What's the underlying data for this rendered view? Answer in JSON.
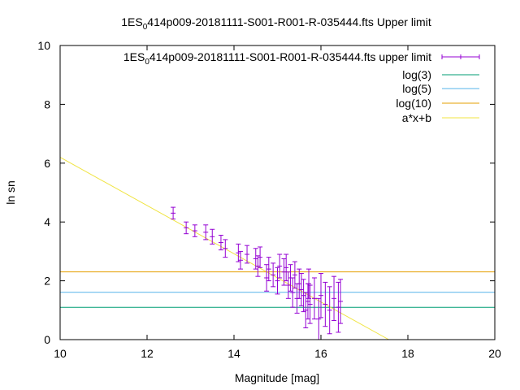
{
  "chart_data": {
    "type": "scatter",
    "title": {
      "prefix": "1ES",
      "sub": "0",
      "rest": "414p009-20181111-S001-R001-R-035444.fts Upper limit"
    },
    "xlabel": "Magnitude [mag]",
    "ylabel": "ln sn",
    "xlim": [
      10,
      20
    ],
    "ylim": [
      0,
      10
    ],
    "xticks": [
      "10",
      "12",
      "14",
      "16",
      "18",
      "20"
    ],
    "yticks": [
      "0",
      "2",
      "4",
      "6",
      "8",
      "10"
    ],
    "grid": false,
    "legend_position": "top-right",
    "series": [
      {
        "name_prefix": "1ES",
        "name_sub": "0",
        "name_rest": "414p009-20181111-S001-R001-R-035444.fts upper limit",
        "kind": "errorbars",
        "color": "#9400d3",
        "points": [
          {
            "x": 12.6,
            "y": 4.3,
            "err": 0.2
          },
          {
            "x": 12.9,
            "y": 3.8,
            "err": 0.2
          },
          {
            "x": 13.1,
            "y": 3.7,
            "err": 0.2
          },
          {
            "x": 13.35,
            "y": 3.65,
            "err": 0.25
          },
          {
            "x": 13.5,
            "y": 3.5,
            "err": 0.25
          },
          {
            "x": 13.7,
            "y": 3.3,
            "err": 0.25
          },
          {
            "x": 13.8,
            "y": 3.1,
            "err": 0.3
          },
          {
            "x": 14.1,
            "y": 2.95,
            "err": 0.3
          },
          {
            "x": 14.15,
            "y": 2.7,
            "err": 0.3
          },
          {
            "x": 14.3,
            "y": 2.9,
            "err": 0.3
          },
          {
            "x": 14.5,
            "y": 2.75,
            "err": 0.35
          },
          {
            "x": 14.55,
            "y": 2.5,
            "err": 0.35
          },
          {
            "x": 14.6,
            "y": 2.8,
            "err": 0.35
          },
          {
            "x": 14.75,
            "y": 2.1,
            "err": 0.45
          },
          {
            "x": 14.8,
            "y": 2.4,
            "err": 0.4
          },
          {
            "x": 14.9,
            "y": 2.2,
            "err": 0.4
          },
          {
            "x": 15.0,
            "y": 2.0,
            "err": 0.45
          },
          {
            "x": 15.05,
            "y": 2.5,
            "err": 0.4
          },
          {
            "x": 15.15,
            "y": 2.3,
            "err": 0.45
          },
          {
            "x": 15.2,
            "y": 2.45,
            "err": 0.45
          },
          {
            "x": 15.25,
            "y": 1.85,
            "err": 0.45
          },
          {
            "x": 15.3,
            "y": 2.1,
            "err": 0.45
          },
          {
            "x": 15.35,
            "y": 1.6,
            "err": 0.5
          },
          {
            "x": 15.4,
            "y": 2.2,
            "err": 0.45
          },
          {
            "x": 15.45,
            "y": 1.4,
            "err": 0.5
          },
          {
            "x": 15.5,
            "y": 1.9,
            "err": 0.5
          },
          {
            "x": 15.55,
            "y": 1.7,
            "err": 0.55
          },
          {
            "x": 15.6,
            "y": 1.5,
            "err": 0.55
          },
          {
            "x": 15.65,
            "y": 1.0,
            "err": 0.6
          },
          {
            "x": 15.7,
            "y": 1.3,
            "err": 0.6
          },
          {
            "x": 15.72,
            "y": 1.9,
            "err": 0.5
          },
          {
            "x": 15.75,
            "y": 1.2,
            "err": 0.65
          },
          {
            "x": 15.85,
            "y": 1.4,
            "err": 0.7
          },
          {
            "x": 15.95,
            "y": 0.7,
            "err": 0.7
          },
          {
            "x": 16.0,
            "y": 1.5,
            "err": 0.75
          },
          {
            "x": 16.1,
            "y": 1.2,
            "err": 0.75
          },
          {
            "x": 16.2,
            "y": 1.0,
            "err": 0.8
          },
          {
            "x": 16.3,
            "y": 1.4,
            "err": 0.75
          },
          {
            "x": 16.4,
            "y": 1.1,
            "err": 0.85
          },
          {
            "x": 16.45,
            "y": 1.3,
            "err": 0.75
          }
        ]
      },
      {
        "name": "log(3)",
        "kind": "hline",
        "color": "#009e73",
        "value": 1.0986
      },
      {
        "name": "log(5)",
        "kind": "hline",
        "color": "#56b4e9",
        "value": 1.6094
      },
      {
        "name": "log(10)",
        "kind": "hline",
        "color": "#e69f00",
        "value": 2.3026
      },
      {
        "name": "a*x+b",
        "kind": "line",
        "color": "#f0e442",
        "slope": -0.82,
        "intercept": 14.4
      }
    ]
  }
}
